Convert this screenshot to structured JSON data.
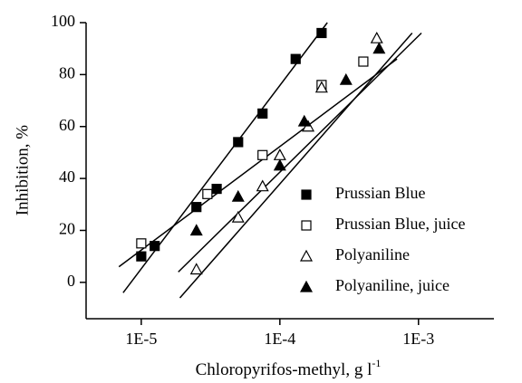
{
  "chart_data": {
    "type": "scatter",
    "ylabel": "Inhibition, %",
    "xlabel": {
      "text": "Chloropyrifos-methyl, g l",
      "sup": "-1"
    },
    "xlog": true,
    "xlim": [
      4e-06,
      0.0035
    ],
    "xticks": [
      {
        "value": 1e-05,
        "label": "1E-5"
      },
      {
        "value": 0.0001,
        "label": "1E-4"
      },
      {
        "value": 0.001,
        "label": "1E-3"
      }
    ],
    "ylim": [
      -14,
      100
    ],
    "yticks": [
      0,
      20,
      40,
      60,
      80,
      100
    ],
    "legend": "right",
    "series": [
      {
        "name": "Prussian Blue",
        "color": "#000000",
        "marker": "square",
        "filled": true,
        "x": [
          1e-05,
          1.25e-05,
          2.5e-05,
          3.5e-05,
          5e-05,
          7.5e-05,
          0.00013,
          0.0002
        ],
        "values": [
          10,
          14,
          29,
          36,
          54,
          65,
          86,
          96
        ],
        "fit": {
          "x": [
            7.4e-06,
            0.00022
          ],
          "y": [
            -4,
            100
          ]
        }
      },
      {
        "name": "Prussian Blue, juice",
        "color": "#000000",
        "marker": "square",
        "filled": false,
        "x": [
          1e-05,
          3e-05,
          7.5e-05,
          0.0002,
          0.0004
        ],
        "values": [
          15,
          34,
          49,
          76,
          85
        ],
        "fit": {
          "x": [
            6.9e-06,
            0.0007
          ],
          "y": [
            6,
            86
          ]
        }
      },
      {
        "name": "Polyaniline",
        "color": "#000000",
        "marker": "triangle",
        "filled": false,
        "x": [
          2.5e-05,
          5e-05,
          7.5e-05,
          0.0001,
          0.00016,
          0.0002,
          0.0005
        ],
        "values": [
          5,
          25,
          37,
          49,
          60,
          75,
          94
        ],
        "fit": {
          "x": [
            1.9e-05,
            0.0009
          ],
          "y": [
            -6,
            96
          ]
        }
      },
      {
        "name": "Polyaniline, juice",
        "color": "#000000",
        "marker": "triangle",
        "filled": true,
        "x": [
          2.5e-05,
          5e-05,
          0.0001,
          0.00015,
          0.0003,
          0.00052
        ],
        "values": [
          20,
          33,
          45,
          62,
          78,
          90
        ],
        "fit": {
          "x": [
            1.85e-05,
            0.00105
          ],
          "y": [
            4,
            96
          ]
        }
      }
    ]
  }
}
